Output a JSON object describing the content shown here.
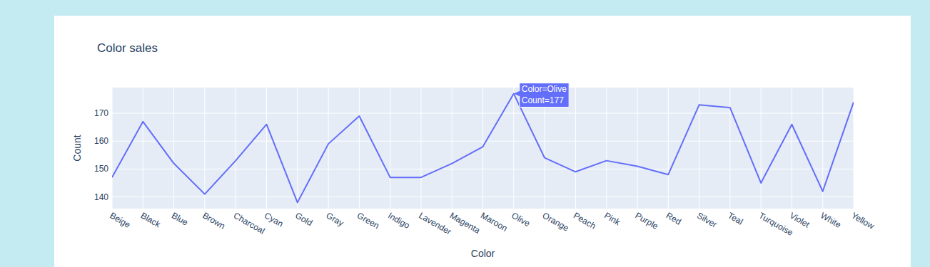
{
  "chart_data": {
    "type": "line",
    "title": "Color sales",
    "x_label": "Color",
    "y_label": "Count",
    "categories": [
      "Beige",
      "Black",
      "Blue",
      "Brown",
      "Charcoal",
      "Cyan",
      "Gold",
      "Gray",
      "Green",
      "Indigo",
      "Lavender",
      "Magenta",
      "Maroon",
      "Olive",
      "Orange",
      "Peach",
      "Pink",
      "Purple",
      "Red",
      "Silver",
      "Teal",
      "Turquoise",
      "Violet",
      "White",
      "Yellow"
    ],
    "values": [
      147,
      167,
      152,
      141,
      153,
      166,
      138,
      159,
      169,
      147,
      147,
      152,
      158,
      177,
      154,
      149,
      153,
      151,
      148,
      173,
      172,
      145,
      166,
      142,
      174
    ],
    "color": "#636efa",
    "ylim": [
      135.8,
      179.2
    ],
    "yticks": [
      140,
      150,
      160,
      170
    ],
    "grid": true,
    "annotations": [
      {
        "x": "Olive",
        "y": 177,
        "text": [
          "Color=Olive",
          "Count=177"
        ]
      }
    ]
  }
}
